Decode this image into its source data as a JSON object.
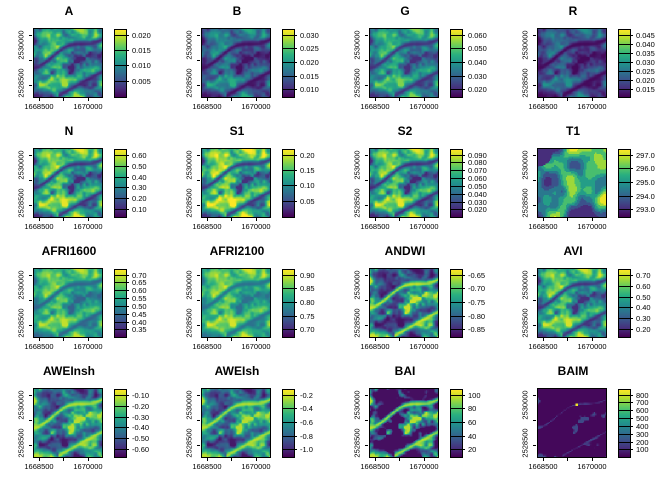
{
  "figure": {
    "background": "#ffffff",
    "description": "4x4 grid of single-band raster map plots with viridis colour legends"
  },
  "chart_data": {
    "type": "heatmap",
    "layout": {
      "rows": 4,
      "cols": 4
    },
    "colormap": {
      "name": "viridis",
      "stops": [
        "#440154",
        "#472d7b",
        "#3b528b",
        "#2c728e",
        "#21918c",
        "#28ae80",
        "#5ec962",
        "#addc30",
        "#fde725"
      ]
    },
    "x_axis": {
      "tick_labels": [
        "1668500",
        "1670000"
      ]
    },
    "y_axis": {
      "tick_labels": [
        "2530000",
        "2528500"
      ]
    },
    "panels": [
      {
        "title": "A",
        "legend_ticks": [
          "0.020",
          "0.015",
          "0.010",
          "0.005"
        ],
        "render": {
          "offset": 0.08,
          "scale": 0.8,
          "gamma": 1.0
        }
      },
      {
        "title": "B",
        "legend_ticks": [
          "0.030",
          "0.025",
          "0.020",
          "0.015",
          "0.010"
        ],
        "render": {
          "offset": 0.04,
          "scale": 0.6,
          "gamma": 1.2
        }
      },
      {
        "title": "G",
        "legend_ticks": [
          "0.060",
          "0.050",
          "0.040",
          "0.030",
          "0.020"
        ],
        "render": {
          "offset": 0.12,
          "scale": 0.7,
          "gamma": 1.0
        }
      },
      {
        "title": "R",
        "legend_ticks": [
          "0.045",
          "0.040",
          "0.035",
          "0.030",
          "0.025",
          "0.020",
          "0.015"
        ],
        "render": {
          "offset": 0.02,
          "scale": 0.5,
          "gamma": 1.3
        }
      },
      {
        "title": "N",
        "legend_ticks": [
          "0.60",
          "0.50",
          "0.40",
          "0.30",
          "0.20",
          "0.10"
        ],
        "render": {
          "offset": 0.08,
          "scale": 0.9,
          "gamma": 0.8
        }
      },
      {
        "title": "S1",
        "legend_ticks": [
          "0.20",
          "0.15",
          "0.10",
          "0.05"
        ],
        "render": {
          "offset": 0.1,
          "scale": 0.95,
          "gamma": 0.8
        }
      },
      {
        "title": "S2",
        "legend_ticks": [
          "0.090",
          "0.080",
          "0.070",
          "0.060",
          "0.050",
          "0.040",
          "0.030",
          "0.020"
        ],
        "render": {
          "offset": 0.08,
          "scale": 0.9,
          "gamma": 0.85
        }
      },
      {
        "title": "T1",
        "legend_ticks": [
          "297.0",
          "296.0",
          "295.0",
          "294.0",
          "293.0"
        ],
        "render": {
          "field": "smooth",
          "offset": 0.1,
          "scale": 0.9,
          "gamma": 1.0
        }
      },
      {
        "title": "AFRI1600",
        "legend_ticks": [
          "0.70",
          "0.65",
          "0.60",
          "0.55",
          "0.50",
          "0.45",
          "0.40",
          "0.35"
        ],
        "render": {
          "offset": 0.3,
          "scale": 0.62,
          "gamma": 1.0
        }
      },
      {
        "title": "AFRI2100",
        "legend_ticks": [
          "0.90",
          "0.85",
          "0.80",
          "0.75",
          "0.70"
        ],
        "render": {
          "offset": 0.35,
          "scale": 0.6,
          "gamma": 1.0
        }
      },
      {
        "title": "ANDWI",
        "legend_ticks": [
          "-0.65",
          "-0.70",
          "-0.75",
          "-0.80",
          "-0.85"
        ],
        "render": {
          "invert": true,
          "offset": 0.05,
          "scale": 0.9,
          "gamma": 1.6
        }
      },
      {
        "title": "AVI",
        "legend_ticks": [
          "0.70",
          "0.60",
          "0.50",
          "0.40",
          "0.30",
          "0.20"
        ],
        "render": {
          "offset": 0.1,
          "scale": 0.85,
          "gamma": 0.85
        }
      },
      {
        "title": "AWEInsh",
        "legend_ticks": [
          "-0.10",
          "-0.20",
          "-0.30",
          "-0.40",
          "-0.50",
          "-0.60"
        ],
        "render": {
          "invert": true,
          "offset": 0.06,
          "scale": 0.85,
          "gamma": 1.2
        }
      },
      {
        "title": "AWEIsh",
        "legend_ticks": [
          "-0.2",
          "-0.4",
          "-0.6",
          "-0.8",
          "-1.0"
        ],
        "render": {
          "invert": true,
          "offset": 0.06,
          "scale": 0.85,
          "gamma": 1.2
        }
      },
      {
        "title": "BAI",
        "legend_ticks": [
          "100",
          "80",
          "60",
          "40",
          "20"
        ],
        "render": {
          "invert": true,
          "thr": 0.45,
          "mul": 1.6,
          "base": 0.04
        }
      },
      {
        "title": "BAIM",
        "legend_ticks": [
          "800",
          "700",
          "600",
          "500",
          "400",
          "300",
          "200",
          "100"
        ],
        "render": {
          "invert": true,
          "thr": 0.9,
          "mul": 2.5,
          "base": 0.02,
          "hotspot": [
            0.57,
            0.23
          ]
        }
      }
    ]
  }
}
